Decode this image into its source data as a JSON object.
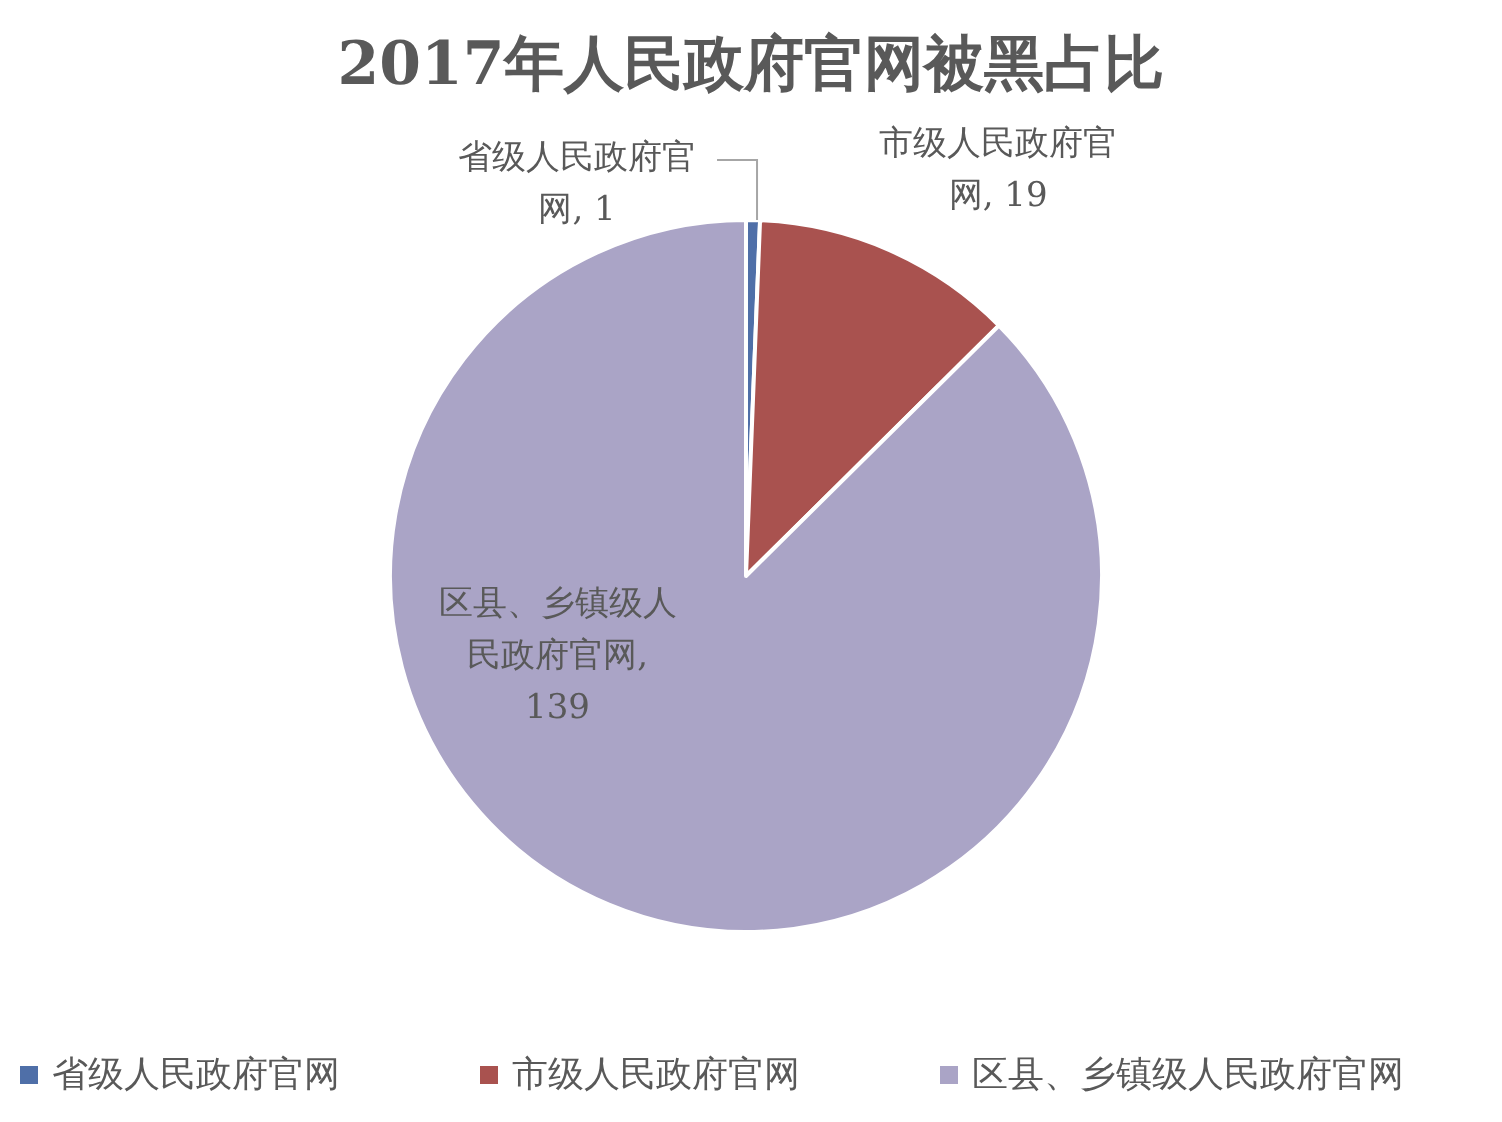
{
  "chart_data": {
    "type": "pie",
    "title": "2017年人民政府官网被黑占比",
    "categories": [
      "省级人民政府官网",
      "市级人民政府官网",
      "区县、乡镇级人民政府官网"
    ],
    "values": [
      1,
      19,
      139
    ],
    "colors": [
      "#4f6fa8",
      "#a9524f",
      "#aaa4c6"
    ],
    "value_labels": [
      "省级人民政府官网, 1",
      "市级人民政府官网, 19",
      "区县、乡镇级人民政府官网, 139"
    ],
    "legend": "bottom"
  }
}
